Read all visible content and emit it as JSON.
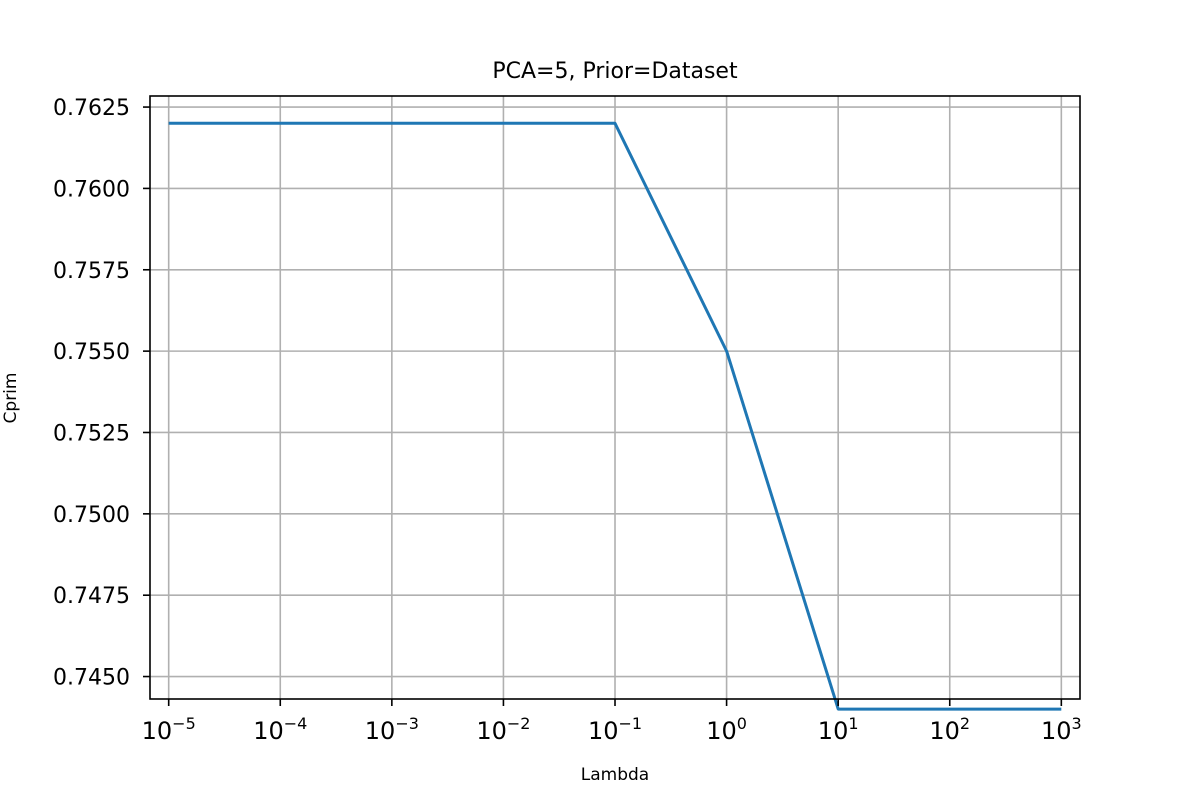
{
  "chart_data": {
    "type": "line",
    "title": "PCA=5, Prior=Dataset",
    "xlabel": "Lambda",
    "ylabel": "Cprim",
    "x_scale": "log",
    "x_tick_labels": [
      {
        "base": "10",
        "exp": "−5"
      },
      {
        "base": "10",
        "exp": "−4"
      },
      {
        "base": "10",
        "exp": "−3"
      },
      {
        "base": "10",
        "exp": "−2"
      },
      {
        "base": "10",
        "exp": "−1"
      },
      {
        "base": "10",
        "exp": "0"
      },
      {
        "base": "10",
        "exp": "1"
      },
      {
        "base": "10",
        "exp": "2"
      },
      {
        "base": "10",
        "exp": "3"
      }
    ],
    "y_ticks": [
      "0.7450",
      "0.7475",
      "0.7500",
      "0.7525",
      "0.7550",
      "0.7575",
      "0.7600",
      "0.7625"
    ],
    "xlim": [
      6.8e-06,
      1470
    ],
    "ylim": [
      0.74431,
      0.76284
    ],
    "grid": true,
    "series": [
      {
        "color": "#1f77b4",
        "x": [
          1e-05,
          0.0001,
          0.001,
          0.01,
          0.1,
          1,
          10,
          100,
          1000
        ],
        "y": [
          0.762,
          0.762,
          0.762,
          0.762,
          0.762,
          0.755,
          0.744,
          0.744,
          0.744
        ]
      }
    ]
  },
  "colors": {
    "line": "#1f77b4",
    "grid": "#b0b0b0",
    "axes": "#000000"
  }
}
